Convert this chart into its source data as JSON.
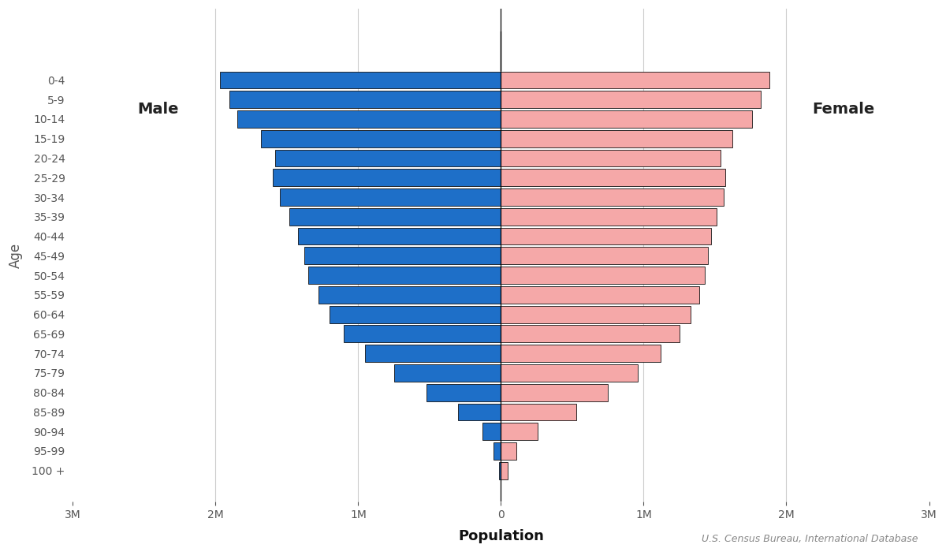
{
  "age_groups": [
    "0-4",
    "5-9",
    "10-14",
    "15-19",
    "20-24",
    "25-29",
    "30-34",
    "35-39",
    "40-44",
    "45-49",
    "50-54",
    "55-59",
    "60-64",
    "65-69",
    "70-74",
    "75-79",
    "80-84",
    "85-89",
    "90-94",
    "95-99",
    "100 +"
  ],
  "male": [
    1970000,
    1900000,
    1850000,
    1680000,
    1580000,
    1600000,
    1550000,
    1480000,
    1420000,
    1380000,
    1350000,
    1280000,
    1200000,
    1100000,
    950000,
    750000,
    520000,
    300000,
    130000,
    50000,
    15000
  ],
  "female": [
    1880000,
    1820000,
    1760000,
    1620000,
    1540000,
    1570000,
    1560000,
    1510000,
    1470000,
    1450000,
    1430000,
    1390000,
    1330000,
    1250000,
    1120000,
    960000,
    750000,
    530000,
    260000,
    110000,
    45000
  ],
  "male_color": "#1e6fc8",
  "female_color": "#f5a8a8",
  "xlabel": "Population",
  "ylabel": "Age",
  "xlim": 3000000,
  "male_label": "Male",
  "female_label": "Female",
  "source_text": "U.S. Census Bureau, International Database",
  "bg_color": "#ffffff",
  "bar_edgecolor": "#111111",
  "bar_linewidth": 0.6,
  "gridline_color": "#cccccc",
  "gridline_linewidth": 0.8,
  "tick_label_color": "#555555",
  "axis_label_color": "#111111",
  "label_fontsize": 14,
  "tick_fontsize": 10,
  "xlabel_fontsize": 13,
  "ylabel_fontsize": 12
}
